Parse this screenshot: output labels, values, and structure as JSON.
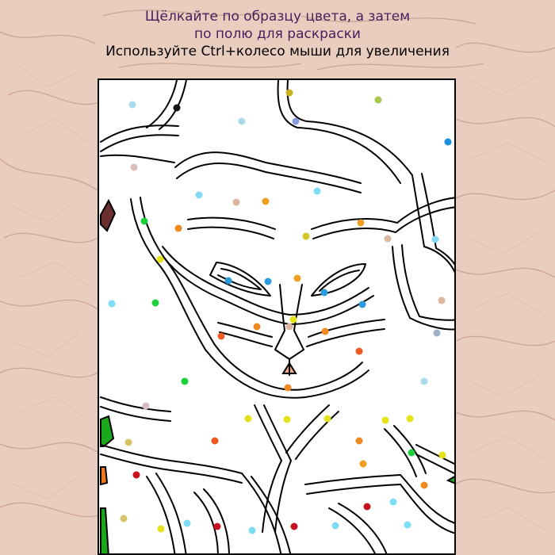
{
  "header": {
    "hint_line1": "Щёлкайте по образцу цвета, а затем",
    "hint_line2": "по полю для раскраски",
    "zoom_hint": "Используйте Ctrl+колесо мыши для увеличения"
  },
  "colors": {
    "instruction_text": "#4b1d5c",
    "board_background": "#ffffff",
    "outline": "#000000",
    "skin_background": "#e9cdbf"
  },
  "filled_regions": [
    {
      "name": "filled-region-maroon",
      "color": "#6b2f2f"
    },
    {
      "name": "filled-region-green-left",
      "color": "#1aa81a"
    },
    {
      "name": "filled-region-orange-left",
      "color": "#f07a1a"
    },
    {
      "name": "filled-region-green-bottom",
      "color": "#1aa81a"
    },
    {
      "name": "filled-region-nose",
      "color": "#e8a88e"
    }
  ],
  "color_markers": [
    {
      "color": "#a8dcea"
    },
    {
      "color": "#111111"
    },
    {
      "color": "#c9b21c"
    },
    {
      "color": "#a8dcea"
    },
    {
      "color": "#8899dd"
    },
    {
      "color": "#a7c94a"
    },
    {
      "color": "#1a8fe0"
    },
    {
      "color": "#d9bfc0"
    },
    {
      "color": "#7fdcf5"
    },
    {
      "color": "#ddb6a0"
    },
    {
      "color": "#f0a020"
    },
    {
      "color": "#7fdcf5"
    },
    {
      "color": "#1bd13b"
    },
    {
      "color": "#f08a20"
    },
    {
      "color": "#e4e21a"
    },
    {
      "color": "#d7c428"
    },
    {
      "color": "#f0a020"
    },
    {
      "color": "#ddb6a0"
    },
    {
      "color": "#7fdcf5"
    },
    {
      "color": "#7fdcf5"
    },
    {
      "color": "#1bd13b"
    },
    {
      "color": "#2a9bde"
    },
    {
      "color": "#2a9bde"
    },
    {
      "color": "#f0a020"
    },
    {
      "color": "#2a9bde"
    },
    {
      "color": "#2a9bde"
    },
    {
      "color": "#ddb6a0"
    },
    {
      "color": "#a0b2c6"
    },
    {
      "color": "#e4e21a"
    },
    {
      "color": "#f05a20"
    },
    {
      "color": "#f08a20"
    },
    {
      "color": "#ddb6a0"
    },
    {
      "color": "#f08a20"
    },
    {
      "color": "#f05a20"
    },
    {
      "color": "#1bd13b"
    },
    {
      "color": "#f08a20"
    },
    {
      "color": "#a8dcea"
    },
    {
      "color": "#d9bfc0"
    },
    {
      "color": "#e4e21a"
    },
    {
      "color": "#e4e21a"
    },
    {
      "color": "#e4e21a"
    },
    {
      "color": "#e4e21a"
    },
    {
      "color": "#e4e21a"
    },
    {
      "color": "#f05a20"
    },
    {
      "color": "#f08a20"
    },
    {
      "color": "#1bd13b"
    },
    {
      "color": "#e4e21a"
    },
    {
      "color": "#d7c46a"
    },
    {
      "color": "#c8101e"
    },
    {
      "color": "#f08a20"
    },
    {
      "color": "#c8101e"
    },
    {
      "color": "#7fdcf5"
    },
    {
      "color": "#d7c46a"
    },
    {
      "color": "#e4e21a"
    },
    {
      "color": "#7fdcf5"
    },
    {
      "color": "#c8101e"
    },
    {
      "color": "#7fdcf5"
    },
    {
      "color": "#c8101e"
    },
    {
      "color": "#7fdcf5"
    },
    {
      "color": "#7fdcf5"
    },
    {
      "color": "#f0a020"
    }
  ]
}
